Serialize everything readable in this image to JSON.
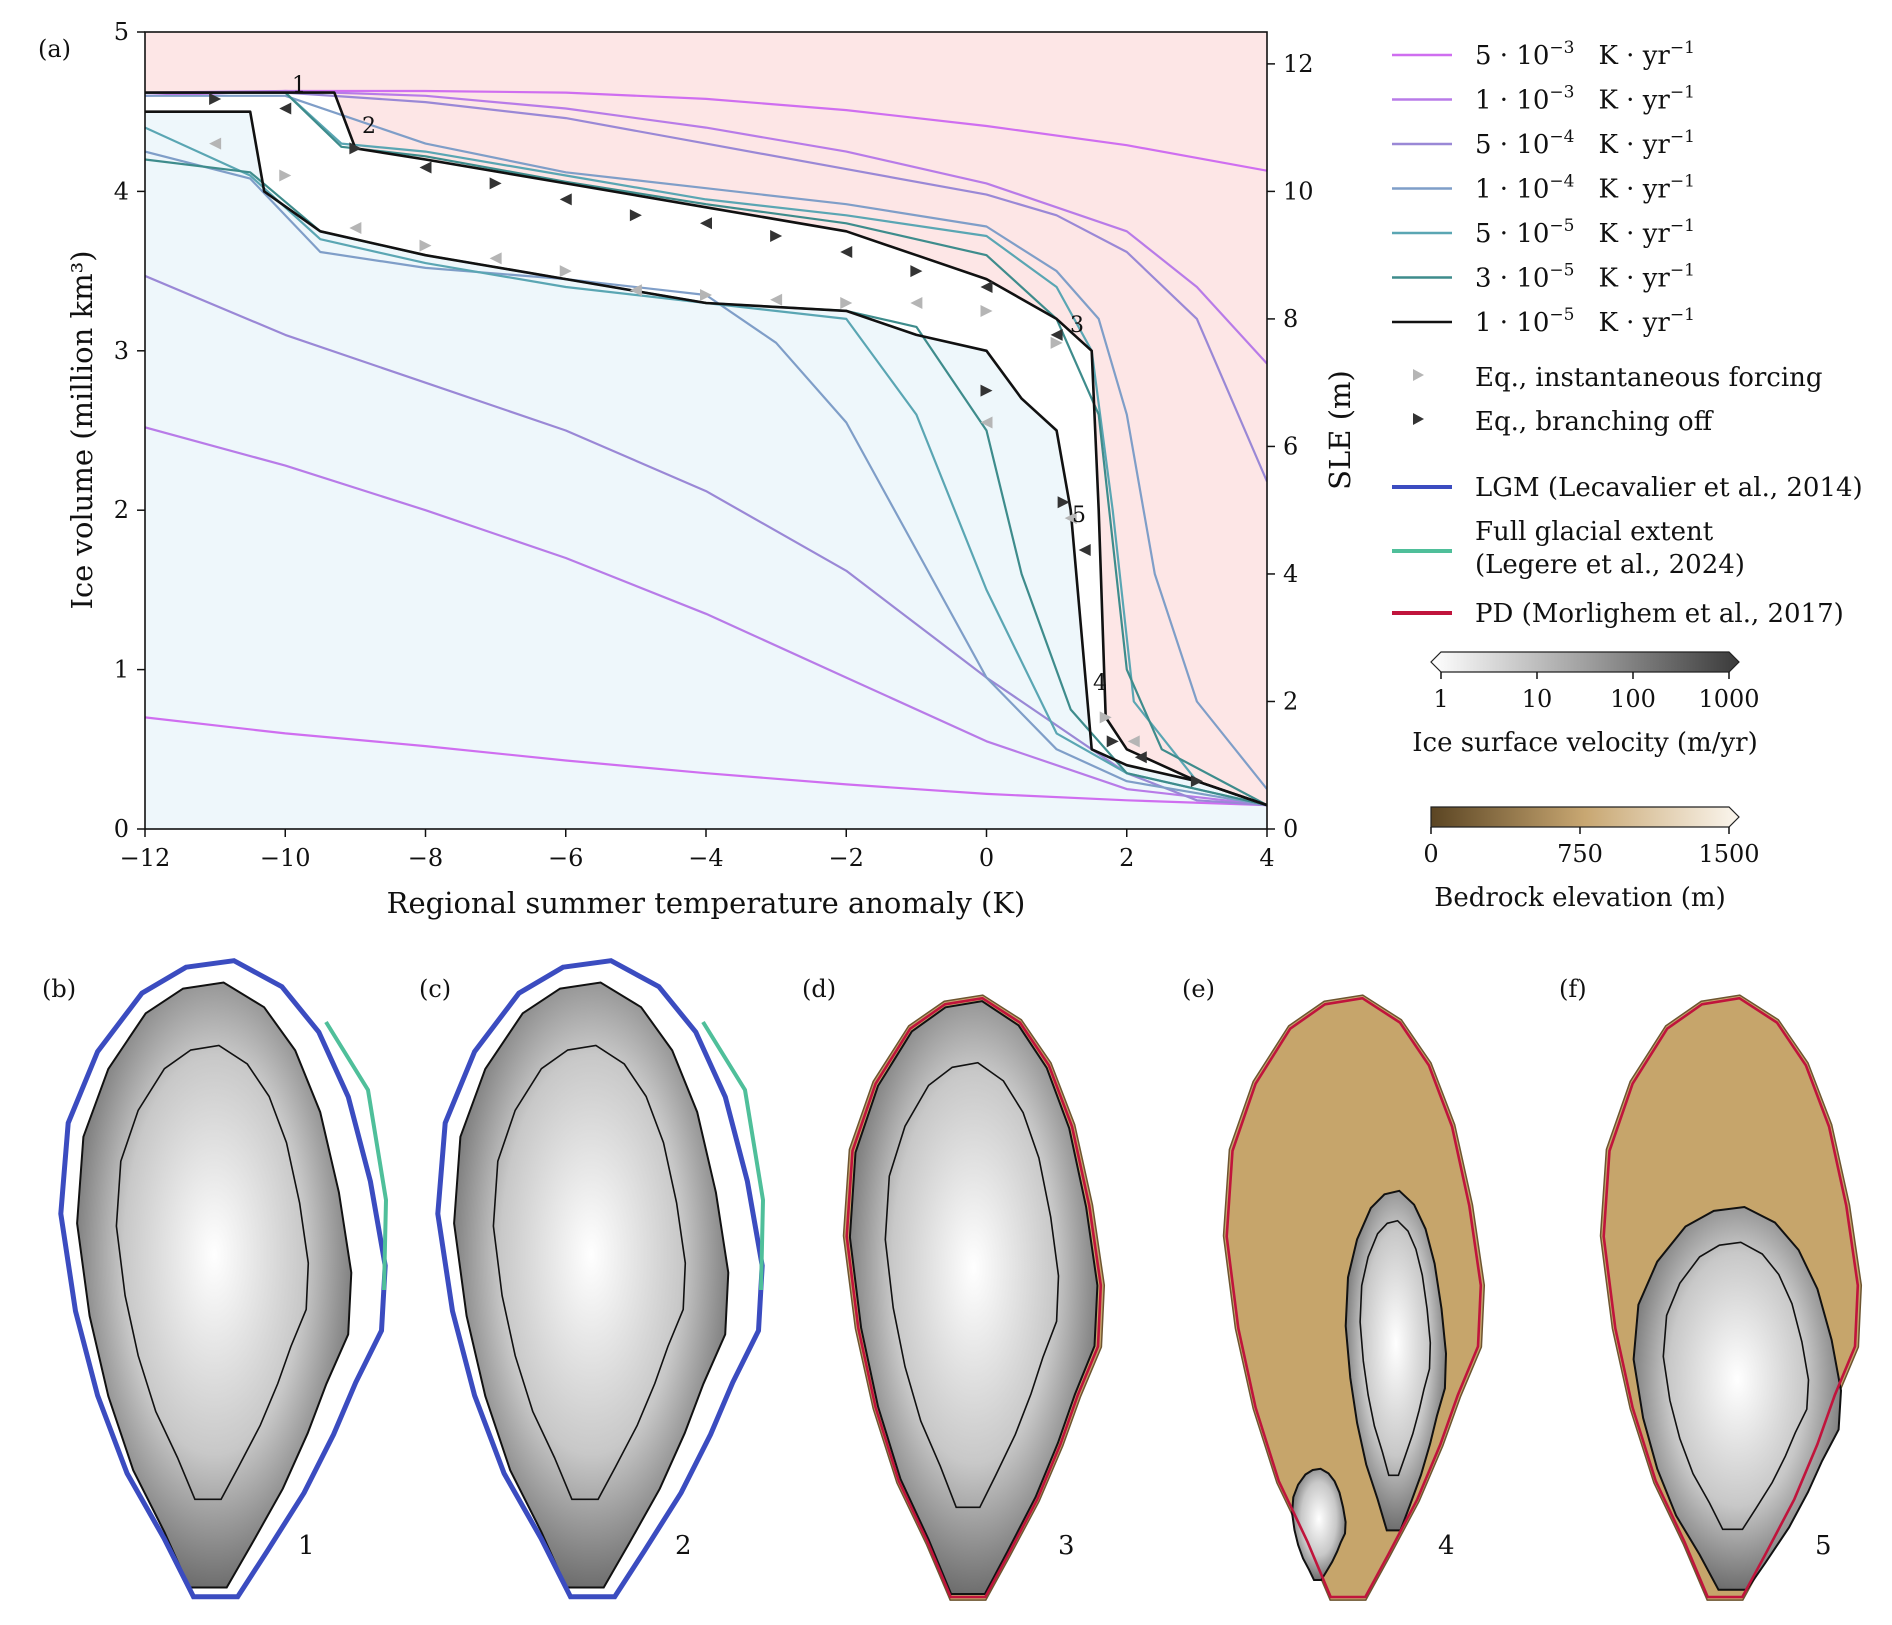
{
  "colors": {
    "stable_region_fill": "#eef7fb",
    "unstable_region_fill": "#fde6e6",
    "lgm": "#3b4cc0",
    "full_glacial": "#4fbf9a",
    "pd": "#c0143c"
  },
  "chart_data": [
    {
      "type": "line",
      "panel_label": "(a)",
      "xlabel": "Regional summer temperature anomaly (K)",
      "ylabel": "Ice volume (million km³)",
      "ylabel_right": "SLE (m)",
      "xlim": [
        -12,
        4
      ],
      "ylim": [
        0,
        5
      ],
      "ylim_right": [
        0,
        12.5
      ],
      "xticks": [
        "−12",
        "−10",
        "−8",
        "−6",
        "−4",
        "−2",
        "0",
        "2",
        "4"
      ],
      "yticks": [
        "0",
        "1",
        "2",
        "3",
        "4",
        "5"
      ],
      "yticks_right": [
        "0",
        "2",
        "4",
        "6",
        "8",
        "10",
        "12"
      ],
      "grid": false,
      "legend_position": "right",
      "series": [
        {
          "name": "5 · 10⁻³  K · yr⁻¹",
          "color": "#cf6ef0",
          "direction": "warming",
          "points": [
            [
              -12,
              4.6
            ],
            [
              -10,
              4.63
            ],
            [
              -8,
              4.63
            ],
            [
              -6,
              4.62
            ],
            [
              -4,
              4.58
            ],
            [
              -2,
              4.51
            ],
            [
              0,
              4.41
            ],
            [
              2,
              4.29
            ],
            [
              4,
              4.13
            ]
          ]
        },
        {
          "name": "5 · 10⁻³  K · yr⁻¹",
          "color": "#cf6ef0",
          "direction": "cooling",
          "points": [
            [
              4,
              0.15
            ],
            [
              2,
              0.18
            ],
            [
              0,
              0.22
            ],
            [
              -2,
              0.28
            ],
            [
              -4,
              0.35
            ],
            [
              -6,
              0.43
            ],
            [
              -8,
              0.52
            ],
            [
              -10,
              0.6
            ],
            [
              -12,
              0.7
            ]
          ]
        },
        {
          "name": "1 · 10⁻³  K · yr⁻¹",
          "color": "#b87be8",
          "direction": "warming",
          "points": [
            [
              -12,
              4.62
            ],
            [
              -10,
              4.63
            ],
            [
              -8,
              4.6
            ],
            [
              -6,
              4.52
            ],
            [
              -4,
              4.4
            ],
            [
              -2,
              4.25
            ],
            [
              0,
              4.05
            ],
            [
              2,
              3.75
            ],
            [
              3,
              3.4
            ],
            [
              4,
              2.92
            ]
          ]
        },
        {
          "name": "1 · 10⁻³  K · yr⁻¹",
          "color": "#b87be8",
          "direction": "cooling",
          "points": [
            [
              4,
              0.15
            ],
            [
              2,
              0.25
            ],
            [
              0,
              0.55
            ],
            [
              -2,
              0.95
            ],
            [
              -4,
              1.35
            ],
            [
              -6,
              1.7
            ],
            [
              -8,
              2.0
            ],
            [
              -10,
              2.28
            ],
            [
              -12,
              2.52
            ]
          ]
        },
        {
          "name": "5 · 10⁻⁴  K · yr⁻¹",
          "color": "#9a88d6",
          "direction": "warming",
          "points": [
            [
              -12,
              4.62
            ],
            [
              -10,
              4.62
            ],
            [
              -8,
              4.56
            ],
            [
              -6,
              4.46
            ],
            [
              -4,
              4.3
            ],
            [
              -2,
              4.14
            ],
            [
              0,
              3.98
            ],
            [
              1,
              3.85
            ],
            [
              2,
              3.62
            ],
            [
              3,
              3.2
            ],
            [
              4,
              2.18
            ]
          ]
        },
        {
          "name": "5 · 10⁻⁴  K · yr⁻¹",
          "color": "#9a88d6",
          "direction": "cooling",
          "points": [
            [
              4,
              0.15
            ],
            [
              3,
              0.18
            ],
            [
              2,
              0.35
            ],
            [
              0,
              0.95
            ],
            [
              -2,
              1.62
            ],
            [
              -4,
              2.12
            ],
            [
              -6,
              2.5
            ],
            [
              -8,
              2.8
            ],
            [
              -10,
              3.1
            ],
            [
              -12,
              3.47
            ]
          ]
        },
        {
          "name": "1 · 10⁻⁴  K · yr⁻¹",
          "color": "#7f9ec8",
          "direction": "warming",
          "points": [
            [
              -12,
              4.6
            ],
            [
              -10,
              4.6
            ],
            [
              -9,
              4.45
            ],
            [
              -8,
              4.3
            ],
            [
              -6,
              4.12
            ],
            [
              -4,
              4.02
            ],
            [
              -2,
              3.92
            ],
            [
              0,
              3.78
            ],
            [
              1,
              3.5
            ],
            [
              1.6,
              3.2
            ],
            [
              2,
              2.6
            ],
            [
              2.4,
              1.6
            ],
            [
              3,
              0.8
            ],
            [
              4,
              0.25
            ]
          ]
        },
        {
          "name": "1 · 10⁻⁴  K · yr⁻¹",
          "color": "#7f9ec8",
          "direction": "cooling",
          "points": [
            [
              4,
              0.15
            ],
            [
              2,
              0.3
            ],
            [
              1,
              0.5
            ],
            [
              0,
              0.95
            ],
            [
              -1,
              1.75
            ],
            [
              -2,
              2.55
            ],
            [
              -3,
              3.05
            ],
            [
              -4,
              3.35
            ],
            [
              -6,
              3.45
            ],
            [
              -8,
              3.52
            ],
            [
              -9.5,
              3.62
            ],
            [
              -10.5,
              4.08
            ],
            [
              -12,
              4.25
            ]
          ]
        },
        {
          "name": "5 · 10⁻⁵  K · yr⁻¹",
          "color": "#5aa6b3",
          "direction": "warming",
          "points": [
            [
              -12,
              4.62
            ],
            [
              -10,
              4.62
            ],
            [
              -9.2,
              4.3
            ],
            [
              -8,
              4.25
            ],
            [
              -6,
              4.1
            ],
            [
              -4,
              3.95
            ],
            [
              -2,
              3.85
            ],
            [
              0,
              3.72
            ],
            [
              1,
              3.4
            ],
            [
              1.5,
              3.0
            ],
            [
              1.8,
              2.0
            ],
            [
              2.1,
              0.8
            ],
            [
              3,
              0.3
            ],
            [
              4,
              0.15
            ]
          ]
        },
        {
          "name": "5 · 10⁻⁵  K · yr⁻¹",
          "color": "#5aa6b3",
          "direction": "cooling",
          "points": [
            [
              4,
              0.15
            ],
            [
              2,
              0.35
            ],
            [
              1,
              0.6
            ],
            [
              0,
              1.5
            ],
            [
              -1,
              2.6
            ],
            [
              -2,
              3.2
            ],
            [
              -4,
              3.3
            ],
            [
              -6,
              3.4
            ],
            [
              -8,
              3.55
            ],
            [
              -9.5,
              3.7
            ],
            [
              -10.5,
              4.1
            ],
            [
              -12,
              4.4
            ]
          ]
        },
        {
          "name": "3 · 10⁻⁵  K · yr⁻¹",
          "color": "#3e8c8c",
          "direction": "warming",
          "points": [
            [
              -12,
              4.62
            ],
            [
              -10,
              4.62
            ],
            [
              -9.2,
              4.28
            ],
            [
              -8,
              4.22
            ],
            [
              -6,
              4.06
            ],
            [
              -4,
              3.92
            ],
            [
              -2,
              3.8
            ],
            [
              0,
              3.6
            ],
            [
              1,
              3.2
            ],
            [
              1.6,
              2.6
            ],
            [
              2,
              1.0
            ],
            [
              2.5,
              0.5
            ],
            [
              4,
              0.15
            ]
          ]
        },
        {
          "name": "3 · 10⁻⁵  K · yr⁻¹",
          "color": "#3e8c8c",
          "direction": "cooling",
          "points": [
            [
              4,
              0.15
            ],
            [
              2,
              0.35
            ],
            [
              1.2,
              0.75
            ],
            [
              0.5,
              1.6
            ],
            [
              0,
              2.5
            ],
            [
              -1,
              3.15
            ],
            [
              -2,
              3.25
            ],
            [
              -4,
              3.3
            ],
            [
              -6,
              3.45
            ],
            [
              -8,
              3.6
            ],
            [
              -9.5,
              3.75
            ],
            [
              -10.5,
              4.12
            ],
            [
              -12,
              4.2
            ]
          ]
        },
        {
          "name": "1 · 10⁻⁵  K · yr⁻¹",
          "color": "#111111",
          "direction": "warming",
          "points": [
            [
              -12,
              4.62
            ],
            [
              -10,
              4.62
            ],
            [
              -9.3,
              4.62
            ],
            [
              -9.0,
              4.27
            ],
            [
              -8,
              4.2
            ],
            [
              -6,
              4.05
            ],
            [
              -4,
              3.9
            ],
            [
              -2,
              3.75
            ],
            [
              -1,
              3.6
            ],
            [
              0,
              3.45
            ],
            [
              1,
              3.2
            ],
            [
              1.5,
              3.0
            ],
            [
              1.6,
              2.0
            ],
            [
              1.7,
              0.7
            ],
            [
              2,
              0.5
            ],
            [
              3,
              0.3
            ],
            [
              4,
              0.15
            ]
          ]
        },
        {
          "name": "1 · 10⁻⁵  K · yr⁻¹",
          "color": "#111111",
          "direction": "cooling",
          "points": [
            [
              4,
              0.15
            ],
            [
              3,
              0.3
            ],
            [
              2,
              0.4
            ],
            [
              1.5,
              0.5
            ],
            [
              1.3,
              1.5
            ],
            [
              1.2,
              2.0
            ],
            [
              1,
              2.5
            ],
            [
              0.5,
              2.7
            ],
            [
              0,
              3.0
            ],
            [
              -1,
              3.1
            ],
            [
              -2,
              3.25
            ],
            [
              -4,
              3.3
            ],
            [
              -6,
              3.45
            ],
            [
              -8,
              3.6
            ],
            [
              -9.5,
              3.75
            ],
            [
              -10.3,
              4.0
            ],
            [
              -10.5,
              4.5
            ],
            [
              -12,
              4.5
            ]
          ]
        }
      ],
      "equilibria_instantaneous": [
        [
          -11,
          4.3
        ],
        [
          -10,
          4.1
        ],
        [
          -9,
          3.77
        ],
        [
          -8,
          3.66
        ],
        [
          -7,
          3.58
        ],
        [
          -6,
          3.5
        ],
        [
          -5,
          3.38
        ],
        [
          -4,
          3.35
        ],
        [
          -3,
          3.32
        ],
        [
          -2,
          3.3
        ],
        [
          -1,
          3.3
        ],
        [
          0,
          3.25
        ],
        [
          0,
          2.55
        ],
        [
          1,
          3.05
        ],
        [
          1.2,
          1.95
        ],
        [
          1.7,
          0.7
        ],
        [
          2.1,
          0.55
        ]
      ],
      "equilibria_branching": [
        [
          -11,
          4.58
        ],
        [
          -10,
          4.52
        ],
        [
          -9,
          4.27
        ],
        [
          -8,
          4.15
        ],
        [
          -7,
          4.05
        ],
        [
          -6,
          3.95
        ],
        [
          -5,
          3.85
        ],
        [
          -4,
          3.8
        ],
        [
          -3,
          3.72
        ],
        [
          -2,
          3.62
        ],
        [
          -1,
          3.5
        ],
        [
          0,
          3.4
        ],
        [
          0,
          2.75
        ],
        [
          1,
          3.1
        ],
        [
          1.1,
          2.05
        ],
        [
          1.4,
          1.75
        ],
        [
          1.8,
          0.55
        ],
        [
          2.2,
          0.45
        ],
        [
          3,
          0.3
        ]
      ],
      "annotations": [
        "1",
        "2",
        "3",
        "4",
        "5"
      ]
    },
    {
      "type": "map",
      "colorbars": [
        {
          "label": "Ice surface velocity (m/yr)",
          "ticks": [
            "1",
            "10",
            "100",
            "1000"
          ],
          "range": [
            1,
            1000
          ],
          "scale": "log"
        },
        {
          "label": "Bedrock elevation (m)",
          "ticks": [
            "0",
            "750",
            "1500"
          ],
          "range": [
            0,
            1500
          ],
          "scale": "linear"
        }
      ],
      "contour_legend": [
        {
          "name": "LGM (Lecavalier et al., 2014)",
          "color": "#3b4cc0"
        },
        {
          "name": "Full glacial extent (Legere et al., 2024)",
          "color": "#4fbf9a"
        },
        {
          "name": "PD (Morlighem et al., 2017)",
          "color": "#c0143c"
        }
      ],
      "panels": [
        {
          "label": "(b)",
          "state": "1"
        },
        {
          "label": "(c)",
          "state": "2"
        },
        {
          "label": "(d)",
          "state": "3"
        },
        {
          "label": "(e)",
          "state": "4"
        },
        {
          "label": "(f)",
          "state": "5"
        }
      ]
    }
  ],
  "legend": {
    "lines": [
      {
        "coef": "5",
        "exp": "−3",
        "unit": "K · yr",
        "unit_exp": "−1",
        "color": "#cf6ef0"
      },
      {
        "coef": "1",
        "exp": "−3",
        "unit": "K · yr",
        "unit_exp": "−1",
        "color": "#b87be8"
      },
      {
        "coef": "5",
        "exp": "−4",
        "unit": "K · yr",
        "unit_exp": "−1",
        "color": "#9a88d6"
      },
      {
        "coef": "1",
        "exp": "−4",
        "unit": "K · yr",
        "unit_exp": "−1",
        "color": "#7f9ec8"
      },
      {
        "coef": "5",
        "exp": "−5",
        "unit": "K · yr",
        "unit_exp": "−1",
        "color": "#5aa6b3"
      },
      {
        "coef": "3",
        "exp": "−5",
        "unit": "K · yr",
        "unit_exp": "−1",
        "color": "#3e8c8c"
      },
      {
        "coef": "1",
        "exp": "−5",
        "unit": "K · yr",
        "unit_exp": "−1",
        "color": "#111111"
      }
    ],
    "eq_instantaneous": "Eq., instantaneous forcing",
    "eq_branching": "Eq., branching off",
    "lgm_label": "LGM (Lecavalier et al., 2014)",
    "full_glacial_label_1": "Full glacial extent",
    "full_glacial_label_2": "(Legere et al., 2024)",
    "pd_label": "PD (Morlighem et al., 2017)"
  }
}
